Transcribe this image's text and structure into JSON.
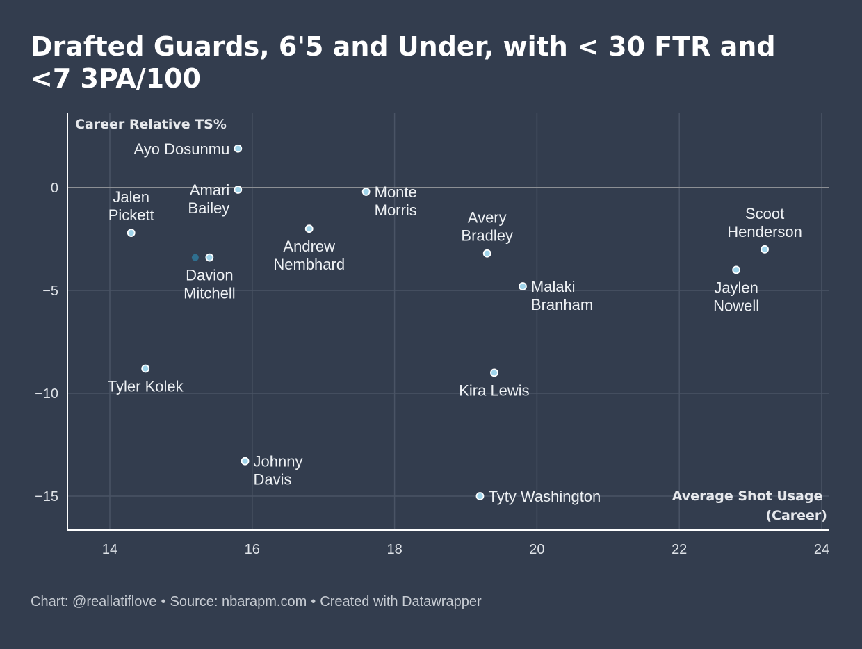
{
  "title": "Drafted Guards, 6'5 and Under, with < 30 FTR and <7 3PA/100",
  "footer": {
    "chart_credit": "Chart: @reallatiflove",
    "source": "Source: nbarapm.com",
    "created_with": "Created with Datawrapper",
    "separator": "•"
  },
  "colors": {
    "background": "#333d4e",
    "point_fill": "#9fd4ea",
    "point_stroke": "#ffffff",
    "point_dark": "#2f6f8f",
    "grid": "#4a5465",
    "zero_line": "#8c8f94",
    "axis_line": "#ffffff"
  },
  "chart_data": {
    "type": "scatter",
    "title": "Drafted Guards, 6'5 and Under, with < 30 FTR and <7 3PA/100",
    "xlabel": "Average Shot Usage (Career)",
    "ylabel": "Career Relative TS%",
    "xlim": [
      13.4,
      24.2
    ],
    "ylim": [
      -16.7,
      3.6
    ],
    "xticks": [
      14,
      16,
      18,
      20,
      22,
      24
    ],
    "yticks": [
      0,
      -5,
      -10,
      -15
    ],
    "ytick_labels": [
      "0",
      "−5",
      "−10",
      "−15"
    ],
    "grid": true,
    "points": [
      {
        "name": "Ayo Dosunmu",
        "x": 15.8,
        "y": 1.9
      },
      {
        "name": "Amari Bailey",
        "x": 15.8,
        "y": -0.1
      },
      {
        "name": "Jalen Pickett",
        "x": 14.3,
        "y": -2.2
      },
      {
        "name": "Monte Morris",
        "x": 17.6,
        "y": -0.2
      },
      {
        "name": "Andrew Nembhard",
        "x": 16.8,
        "y": -2.0
      },
      {
        "name": "Davion Mitchell",
        "x": 15.4,
        "y": -3.4
      },
      {
        "name": "Avery Bradley",
        "x": 19.3,
        "y": -3.2
      },
      {
        "name": "Malaki Branham",
        "x": 19.8,
        "y": -4.8
      },
      {
        "name": "Scoot Henderson",
        "x": 23.2,
        "y": -3.0
      },
      {
        "name": "Jaylen Nowell",
        "x": 22.8,
        "y": -4.0
      },
      {
        "name": "Tyler Kolek",
        "x": 14.5,
        "y": -8.8
      },
      {
        "name": "Kira Lewis",
        "x": 19.4,
        "y": -9.0
      },
      {
        "name": "Johnny Davis",
        "x": 15.9,
        "y": -13.3
      },
      {
        "name": "Tyty Washington",
        "x": 19.2,
        "y": -15.0
      }
    ],
    "unlabeled_points": [
      {
        "x": 15.2,
        "y": -3.4
      }
    ]
  }
}
